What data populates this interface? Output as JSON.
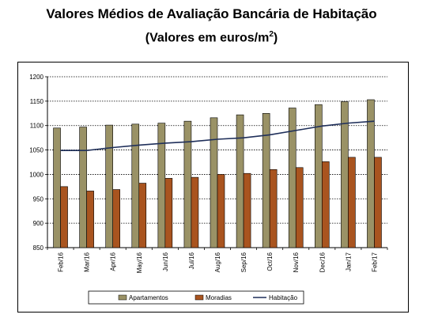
{
  "title_line1": "Valores Médios de Avaliação Bancária de Habitação",
  "title_line2_main": "(Valores em euros/m",
  "title_line2_sup": "2",
  "title_line2_end": ")",
  "colors": {
    "apartamentos": "#9a9266",
    "moradias": "#a9541f",
    "habitacao": "#1f2f5a"
  },
  "chart_data": {
    "type": "bar",
    "categories": [
      "Feb/16",
      "Mar/16",
      "Apr/16",
      "May/16",
      "Jun/16",
      "Jul/16",
      "Aug/16",
      "Sep/16",
      "Oct/16",
      "Nov/16",
      "Dec/16",
      "Jan/17",
      "Feb/17"
    ],
    "series": [
      {
        "name": "Apartamentos",
        "type": "bar",
        "values": [
          1095,
          1097,
          1101,
          1103,
          1105,
          1109,
          1116,
          1122,
          1125,
          1136,
          1143,
          1149,
          1153
        ]
      },
      {
        "name": "Moradias",
        "type": "bar",
        "values": [
          975,
          966,
          969,
          982,
          992,
          994,
          1000,
          1002,
          1010,
          1014,
          1026,
          1035,
          1035
        ]
      },
      {
        "name": "Habitação",
        "type": "line",
        "values": [
          1049,
          1049,
          1055,
          1060,
          1064,
          1067,
          1072,
          1075,
          1081,
          1090,
          1099,
          1105,
          1109
        ]
      }
    ],
    "ylim": [
      850,
      1200
    ],
    "yticks": [
      850,
      900,
      950,
      1000,
      1050,
      1100,
      1150,
      1200
    ],
    "ytick_labels": [
      "850",
      "900",
      "950",
      "1000",
      "1050",
      "1100",
      "1150",
      "1200"
    ],
    "grid": true,
    "legend": "bottom"
  }
}
